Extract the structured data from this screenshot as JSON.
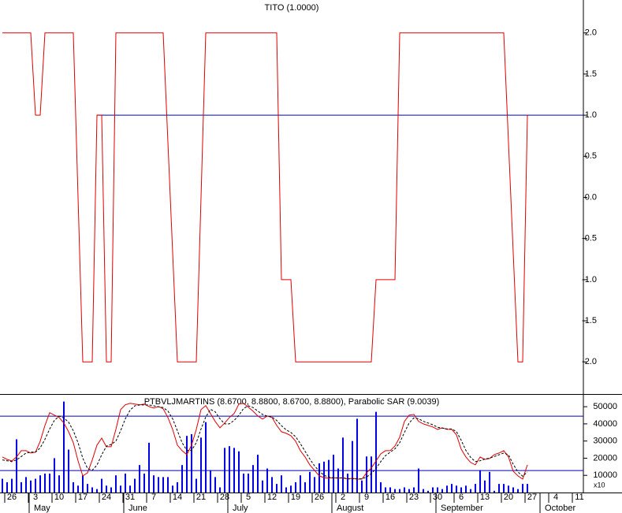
{
  "chart_data": [
    {
      "type": "line",
      "title": "TITO (1.0000)",
      "series": [
        {
          "color": "#e00000",
          "values": [
            2,
            2,
            2,
            2,
            2,
            2,
            2,
            1,
            1,
            2,
            2,
            2,
            2,
            2,
            2,
            2,
            0,
            -2,
            -2,
            -2,
            1,
            1,
            -2,
            -2,
            2,
            2,
            2,
            2,
            2,
            2,
            2,
            2,
            2,
            2,
            2,
            0.67,
            -0.67,
            -2,
            -2,
            -2,
            -2,
            -2,
            0,
            2,
            2,
            2,
            2,
            2,
            2,
            2,
            2,
            2,
            2,
            2,
            2,
            2,
            2,
            2,
            2,
            -1,
            -1,
            -1,
            -2,
            -2,
            -2,
            -2,
            -2,
            -2,
            -2,
            -2,
            -2,
            -2,
            -2,
            -2,
            -2,
            -2,
            -2,
            -2,
            -2,
            -1,
            -1,
            -1,
            -1,
            -1,
            2,
            2,
            2,
            2,
            2,
            2,
            2,
            2,
            2,
            2,
            2,
            2,
            2,
            2,
            2,
            2,
            2,
            2,
            2,
            2,
            2,
            2,
            2,
            0.67,
            -0.67,
            -2,
            -2,
            1
          ]
        }
      ],
      "hline": {
        "value": 1,
        "start": 20,
        "color": "#0000c0"
      },
      "xlim": [
        -0.5,
        122.83
      ],
      "ylim": [
        -2.39,
        2.4
      ],
      "yticks": [
        {
          "value": 2,
          "label": "2.0"
        },
        1.5,
        {
          "value": 1,
          "label": "1.0"
        },
        0.5,
        {
          "value": 0,
          "label": "0.0"
        },
        -0.5,
        {
          "value": -1,
          "label": "-1.0"
        },
        -1.5,
        {
          "value": -2,
          "label": "-2.0"
        }
      ]
    },
    {
      "type": "combo",
      "title": "PTBVLJMARTINS (8.6700, 8.8800, 8.6700, 8.8800), Parabolic SAR (9.0039)",
      "volume": {
        "color": "#0000e0",
        "values": [
          8000,
          6000,
          8000,
          31000,
          6000,
          9000,
          7000,
          8000,
          10000,
          11000,
          11000,
          20000,
          10000,
          53000,
          25000,
          6000,
          4000,
          10000,
          5000,
          3000,
          2000,
          8000,
          4000,
          3000,
          10000,
          4000,
          11000,
          4000,
          8000,
          16000,
          11000,
          29000,
          10000,
          9000,
          9000,
          9000,
          4000,
          6000,
          16000,
          33000,
          34000,
          8000,
          32000,
          41000,
          13000,
          9000,
          3000,
          26000,
          27000,
          26000,
          24000,
          11000,
          11000,
          16000,
          22000,
          7000,
          14000,
          9000,
          5000,
          10000,
          3000,
          4000,
          6000,
          10000,
          6000,
          12000,
          9000,
          17000,
          18000,
          19000,
          22000,
          14000,
          32000,
          11000,
          30000,
          43000,
          7000,
          21000,
          21000,
          47000,
          6000,
          3000,
          3000,
          2000,
          2000,
          3000,
          2000,
          3000,
          14000,
          2000,
          1000,
          3000,
          3000,
          2000,
          4000,
          5000,
          4000,
          3000,
          4000,
          2000,
          5000,
          13000,
          7000,
          12000,
          1000,
          5000,
          5000,
          4000,
          3000,
          2000,
          5000,
          5000
        ]
      },
      "series": [
        {
          "color": "#e00000",
          "dash": false,
          "values": [
            20700,
            19300,
            18400,
            20700,
            24400,
            24400,
            23000,
            23500,
            29900,
            39100,
            46500,
            45100,
            43700,
            40500,
            35400,
            29000,
            18400,
            9700,
            11500,
            18900,
            27600,
            31700,
            26700,
            26700,
            36800,
            48300,
            51100,
            52000,
            51500,
            51100,
            51500,
            50100,
            49200,
            50100,
            48800,
            43700,
            36800,
            27600,
            24400,
            22100,
            27600,
            36800,
            48300,
            50600,
            46000,
            41400,
            37700,
            40500,
            43700,
            46000,
            51500,
            52000,
            49700,
            47400,
            44600,
            42800,
            44600,
            43700,
            39100,
            35400,
            34500,
            33100,
            29900,
            24400,
            20700,
            16100,
            12900,
            9700,
            8700,
            8300,
            8700,
            8300,
            8700,
            7800,
            8300,
            7800,
            7800,
            11500,
            14300,
            18400,
            22500,
            24400,
            24400,
            27100,
            32200,
            41400,
            45100,
            45500,
            41400,
            40000,
            39100,
            38200,
            36800,
            37700,
            36800,
            36800,
            33600,
            25300,
            20700,
            17500,
            16100,
            20700,
            19300,
            19800,
            22100,
            23000,
            24400,
            20700,
            12400,
            9700,
            7800,
            16100
          ]
        },
        {
          "color": "#000000",
          "dash": true,
          "values": [
            19000,
            18500,
            18000,
            19000,
            21000,
            23000,
            23500,
            23500,
            26000,
            31000,
            37000,
            42000,
            44500,
            43500,
            41000,
            36000,
            29000,
            20000,
            14000,
            13000,
            16000,
            22000,
            27000,
            28000,
            30000,
            36000,
            43000,
            48000,
            50500,
            51000,
            51000,
            51000,
            50500,
            50000,
            49500,
            47500,
            43000,
            36000,
            29000,
            24500,
            24500,
            29000,
            37000,
            44000,
            48500,
            47000,
            43000,
            40000,
            40000,
            42000,
            45000,
            49000,
            50500,
            49500,
            47500,
            45500,
            44500,
            44000,
            42000,
            39000,
            36500,
            35000,
            32500,
            28500,
            24000,
            19500,
            15500,
            12500,
            10000,
            9000,
            8500,
            8500,
            8500,
            8000,
            8000,
            8000,
            8000,
            9000,
            11000,
            14000,
            18000,
            21500,
            23500,
            25500,
            29000,
            35000,
            40500,
            43500,
            43000,
            41500,
            40500,
            39500,
            38000,
            37500,
            37000,
            37000,
            35500,
            30500,
            24500,
            20500,
            18000,
            18500,
            19500,
            20000,
            21000,
            22000,
            23000,
            22000,
            16500,
            12000,
            9500,
            12000
          ]
        }
      ],
      "hlines": [
        44500,
        12800
      ],
      "hline_color": "#0000c0",
      "ylim": [
        0,
        57400
      ],
      "yticks": [
        10000,
        20000,
        30000,
        40000,
        50000
      ],
      "scale_note": "x10",
      "xlim": [
        -0.5,
        122.83
      ],
      "xticks": [
        {
          "value": 2,
          "label": "26"
        },
        {
          "value": 7,
          "label": "3"
        },
        {
          "value": 12,
          "label": "10"
        },
        {
          "value": 17,
          "label": "17"
        },
        {
          "value": 22,
          "label": "24"
        },
        {
          "value": 27,
          "label": "31"
        },
        {
          "value": 32,
          "label": "7"
        },
        {
          "value": 37,
          "label": "14"
        },
        {
          "value": 42,
          "label": "21"
        },
        {
          "value": 47,
          "label": "28"
        },
        {
          "value": 52,
          "label": "5"
        },
        {
          "value": 57,
          "label": "12"
        },
        {
          "value": 62,
          "label": "19"
        },
        {
          "value": 67,
          "label": "26"
        },
        {
          "value": 72,
          "label": "2"
        },
        {
          "value": 77,
          "label": "9"
        },
        {
          "value": 82,
          "label": "16"
        },
        {
          "value": 87,
          "label": "23"
        },
        {
          "value": 92,
          "label": "30"
        },
        {
          "value": 97,
          "label": "6"
        },
        {
          "value": 102,
          "label": "13"
        },
        {
          "value": 107,
          "label": "20"
        },
        {
          "value": 112,
          "label": "27"
        },
        {
          "value": 117,
          "label": "4"
        },
        {
          "value": 122,
          "label": "11"
        }
      ],
      "month_ticks": [
        {
          "value": 6,
          "label": "May"
        },
        {
          "value": 26,
          "label": "June"
        },
        {
          "value": 48,
          "label": "July"
        },
        {
          "value": 70,
          "label": "August"
        },
        {
          "value": 92,
          "label": "September"
        },
        {
          "value": 114,
          "label": "October"
        }
      ]
    }
  ]
}
